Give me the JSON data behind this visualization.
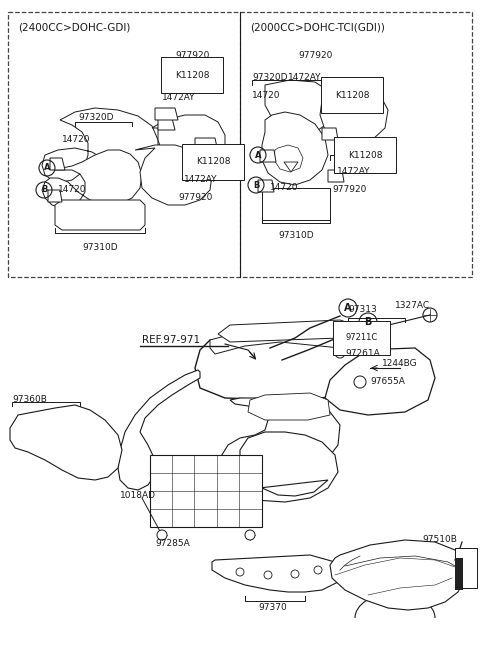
{
  "bg_color": "#ffffff",
  "line_color": "#1a1a1a",
  "figsize": [
    4.8,
    6.56
  ],
  "dpi": 100,
  "box1_title": "(2400CC>DOHC-GDI)",
  "box2_title": "(2000CC>DOHC-TCI(GDI))",
  "ref_label": "REF.97-971",
  "label_97792O": "977920",
  "label_K11208": "K11208",
  "label_1472AY": "1472AY",
  "label_97320D": "97320D",
  "label_14720": "14720",
  "label_97310D": "97310D",
  "label_97313": "97313",
  "label_97211C": "97211C",
  "label_97261A": "97261A",
  "label_1244BG": "1244BG",
  "label_97655A": "97655A",
  "label_1327AC": "1327AC",
  "label_97360B": "97360B",
  "label_1018AD": "1018AD",
  "label_97285A": "97285A",
  "label_97370": "97370",
  "label_97510B": "97510B"
}
